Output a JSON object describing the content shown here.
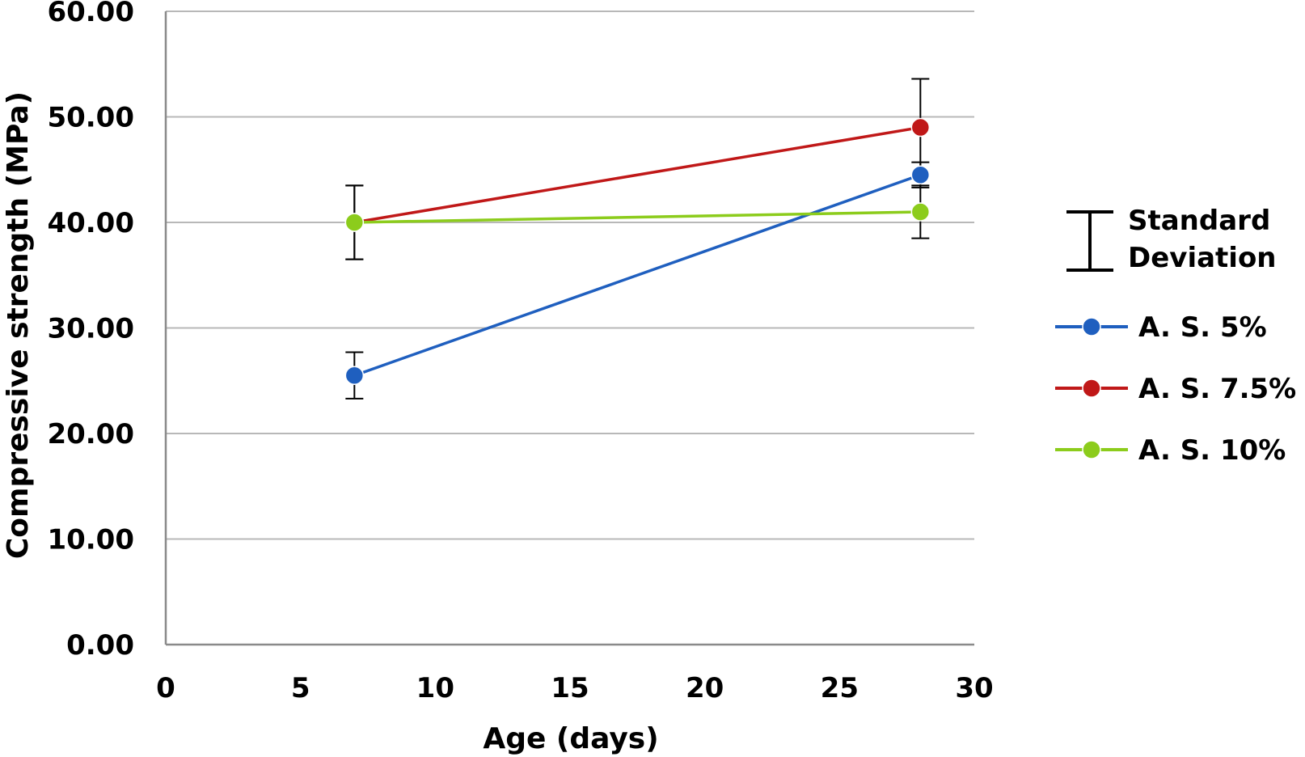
{
  "chart_data": {
    "type": "line",
    "title": "",
    "xlabel": "Age (days)",
    "ylabel": "Compressive strength (MPa)",
    "xlim": [
      0,
      30
    ],
    "ylim": [
      0,
      60
    ],
    "xticks": [
      0,
      5,
      10,
      15,
      20,
      25,
      30
    ],
    "xtick_labels": [
      "0",
      "5",
      "10",
      "15",
      "20",
      "25",
      "30"
    ],
    "yticks": [
      0,
      10,
      20,
      30,
      40,
      50,
      60
    ],
    "ytick_labels": [
      "0.00",
      "10.00",
      "20.00",
      "30.00",
      "40.00",
      "50.00",
      "60.00"
    ],
    "grid": "horizontal",
    "legend_position": "right",
    "error_bar_legend": [
      "Standard",
      "Deviation"
    ],
    "series": [
      {
        "name": "A. S. 5%",
        "color": "#1f5fbf",
        "x": [
          7,
          28
        ],
        "y": [
          25.5,
          44.5
        ],
        "error": [
          2.2,
          1.2
        ]
      },
      {
        "name": "A. S. 7.5%",
        "color": "#c01818",
        "x": [
          7,
          28
        ],
        "y": [
          40.0,
          49.0
        ],
        "error": [
          3.5,
          4.6
        ]
      },
      {
        "name": "A. S. 10%",
        "color": "#8ccc1c",
        "x": [
          7,
          28
        ],
        "y": [
          40.0,
          41.0
        ],
        "error": [
          3.5,
          2.5
        ]
      }
    ]
  }
}
